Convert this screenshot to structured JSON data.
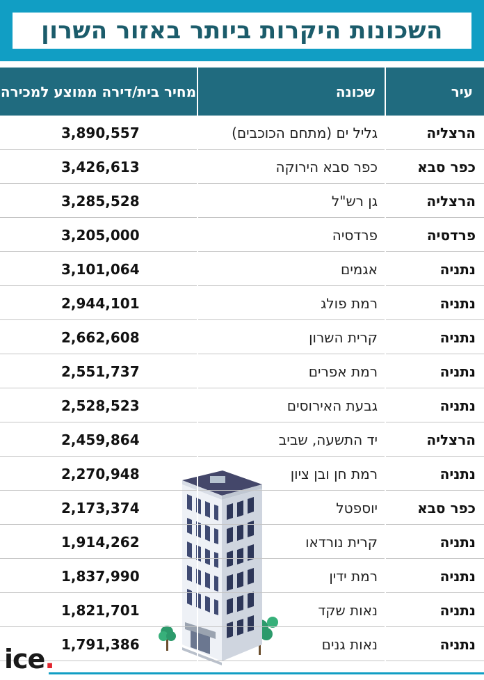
{
  "title": "השכונות היקרות ביותר באזור השרון",
  "headers": {
    "city": "עיר",
    "neighborhood": "שכונה",
    "price": "מחיר בית/דירה ממוצע למכירה"
  },
  "rows": [
    {
      "city": "הרצליה",
      "neighborhood": "גליל ים (מתחם הכוכבים)",
      "price": "3,890,557"
    },
    {
      "city": "כפר סבא",
      "neighborhood": "כפר סבא הירוקה",
      "price": "3,426,613"
    },
    {
      "city": "הרצליה",
      "neighborhood": "גן רש\"ל",
      "price": "3,285,528"
    },
    {
      "city": "פרדסיה",
      "neighborhood": "פרדסיה",
      "price": "3,205,000"
    },
    {
      "city": "נתניה",
      "neighborhood": "אגמים",
      "price": "3,101,064"
    },
    {
      "city": "נתניה",
      "neighborhood": "רמת פולג",
      "price": "2,944,101"
    },
    {
      "city": "נתניה",
      "neighborhood": "קרית השרון",
      "price": "2,662,608"
    },
    {
      "city": "נתניה",
      "neighborhood": "רמת אפרים",
      "price": "2,551,737"
    },
    {
      "city": "נתניה",
      "neighborhood": "גבעת האירוסים",
      "price": "2,528,523"
    },
    {
      "city": "הרצליה",
      "neighborhood": "יד התשעה, שביב",
      "price": "2,459,864"
    },
    {
      "city": "נתניה",
      "neighborhood": "רמת חן ובן ציון",
      "price": "2,270,948"
    },
    {
      "city": "כפר סבא",
      "neighborhood": "יוספטל",
      "price": "2,173,374"
    },
    {
      "city": "נתניה",
      "neighborhood": "קרית נורדאו",
      "price": "1,914,262"
    },
    {
      "city": "נתניה",
      "neighborhood": "רמת ידין",
      "price": "1,837,990"
    },
    {
      "city": "נתניה",
      "neighborhood": "נאות שקד",
      "price": "1,821,701"
    },
    {
      "city": "נתניה",
      "neighborhood": "נאות גנים",
      "price": "1,791,386"
    }
  ],
  "logo": {
    "text": "ice",
    "dot": "."
  },
  "colors": {
    "title_bar": "#119ec4",
    "header": "#206b7f",
    "title_text": "#1b5c6b",
    "logo_dot": "#e2262f"
  },
  "icons": [
    "building-illustration"
  ]
}
